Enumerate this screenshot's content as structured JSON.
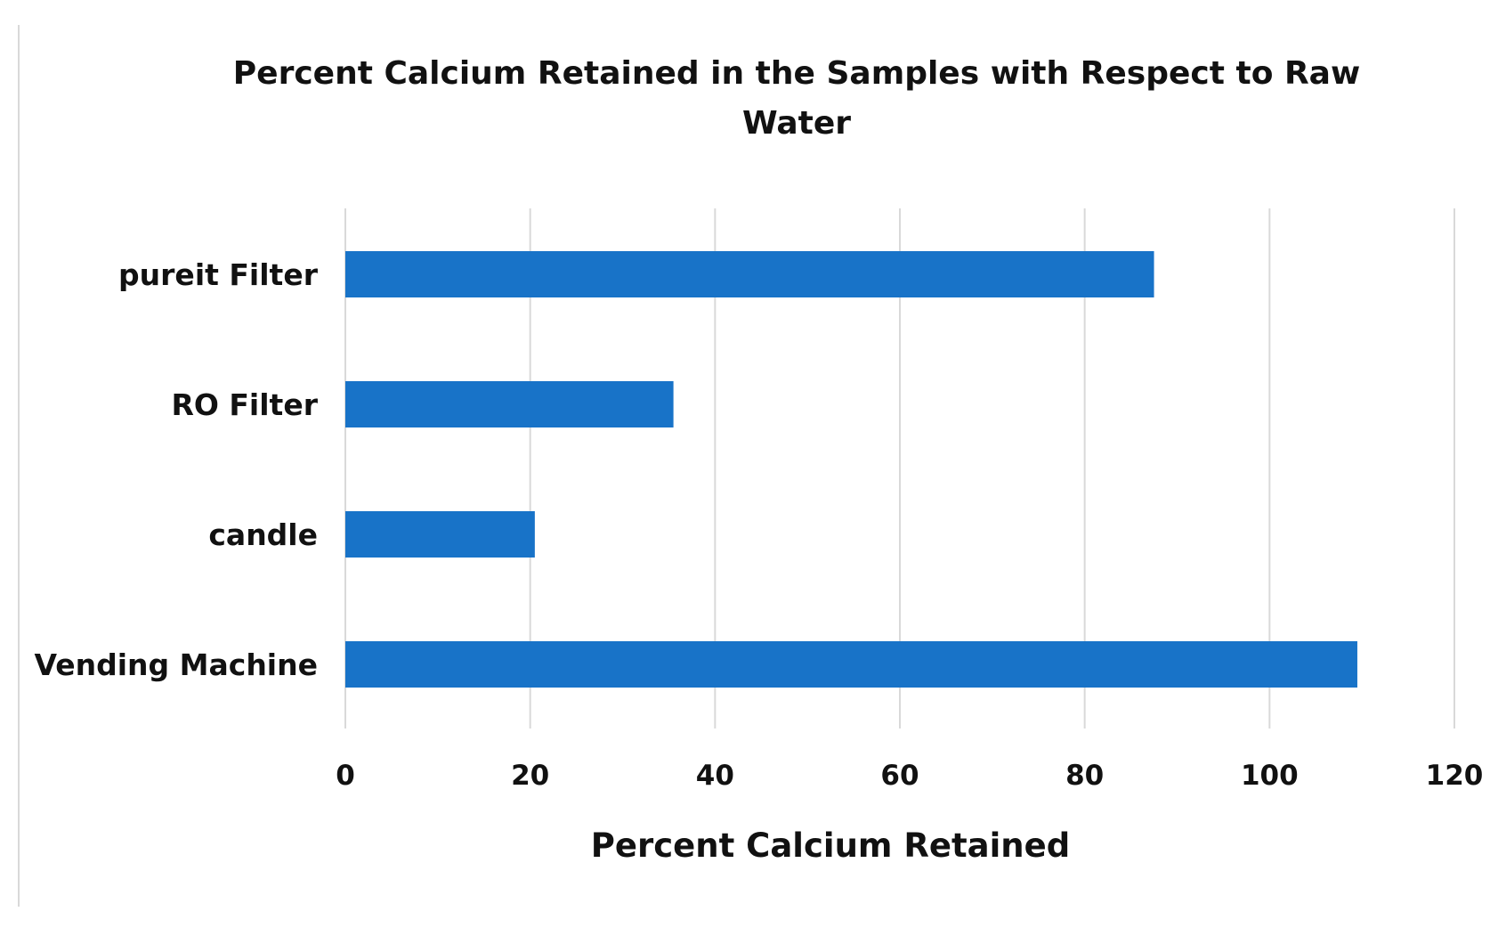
{
  "chart_data": {
    "type": "bar",
    "orientation": "horizontal",
    "title": "Percent Calcium Retained in the Samples with Respect to Raw Water",
    "xlabel": "Percent Calcium Retained",
    "ylabel": "",
    "categories": [
      "pureit Filter",
      "RO Filter",
      "candle",
      "Vending Machine"
    ],
    "values": [
      87.5,
      35.5,
      20.5,
      109.5
    ],
    "xlim": [
      0,
      120
    ],
    "xticks": [
      0,
      20,
      40,
      60,
      80,
      100,
      120
    ],
    "xtick_labels": [
      "0",
      "20",
      "40",
      "60",
      "80",
      "100",
      "120"
    ],
    "grid": "vertical",
    "legend": "none",
    "colors": {
      "bar": "#1873c8",
      "grid": "#d9d9d9"
    }
  }
}
